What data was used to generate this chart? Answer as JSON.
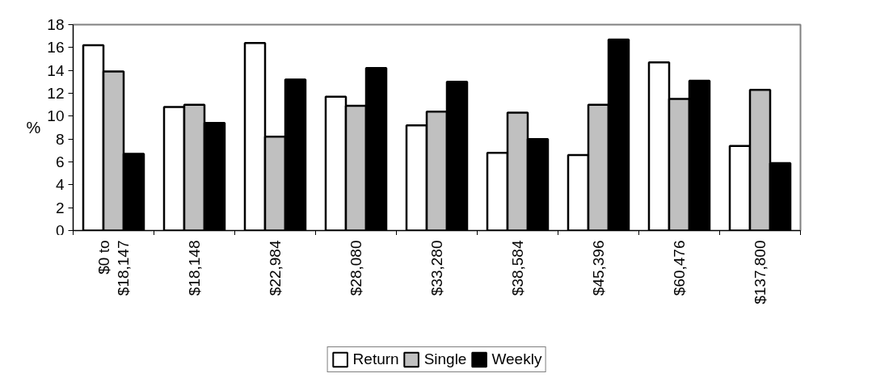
{
  "chart_data": {
    "type": "bar",
    "ylabel": "%",
    "categories": [
      "$0 to\n$18,147",
      "$18,148",
      "$22,984",
      "$28,080",
      "$33,280",
      "$38,584",
      "$45,396",
      "$60,476",
      "$137,800"
    ],
    "series": [
      {
        "name": "Return",
        "color": "#ffffff",
        "values": [
          16.2,
          10.8,
          16.4,
          11.7,
          9.2,
          6.8,
          6.6,
          14.7,
          7.4
        ]
      },
      {
        "name": "Single",
        "color": "#c0c0c0",
        "values": [
          13.9,
          11.0,
          8.2,
          10.9,
          10.4,
          10.3,
          11.0,
          11.5,
          12.3
        ]
      },
      {
        "name": "Weekly",
        "color": "#000000",
        "values": [
          6.7,
          9.4,
          13.2,
          14.2,
          13.0,
          8.0,
          16.7,
          13.1,
          5.9
        ]
      }
    ],
    "ylim": [
      0,
      18
    ],
    "yticks": [
      0,
      2,
      4,
      6,
      8,
      10,
      12,
      14,
      16,
      18
    ],
    "grid": false,
    "legend": "bottom"
  }
}
